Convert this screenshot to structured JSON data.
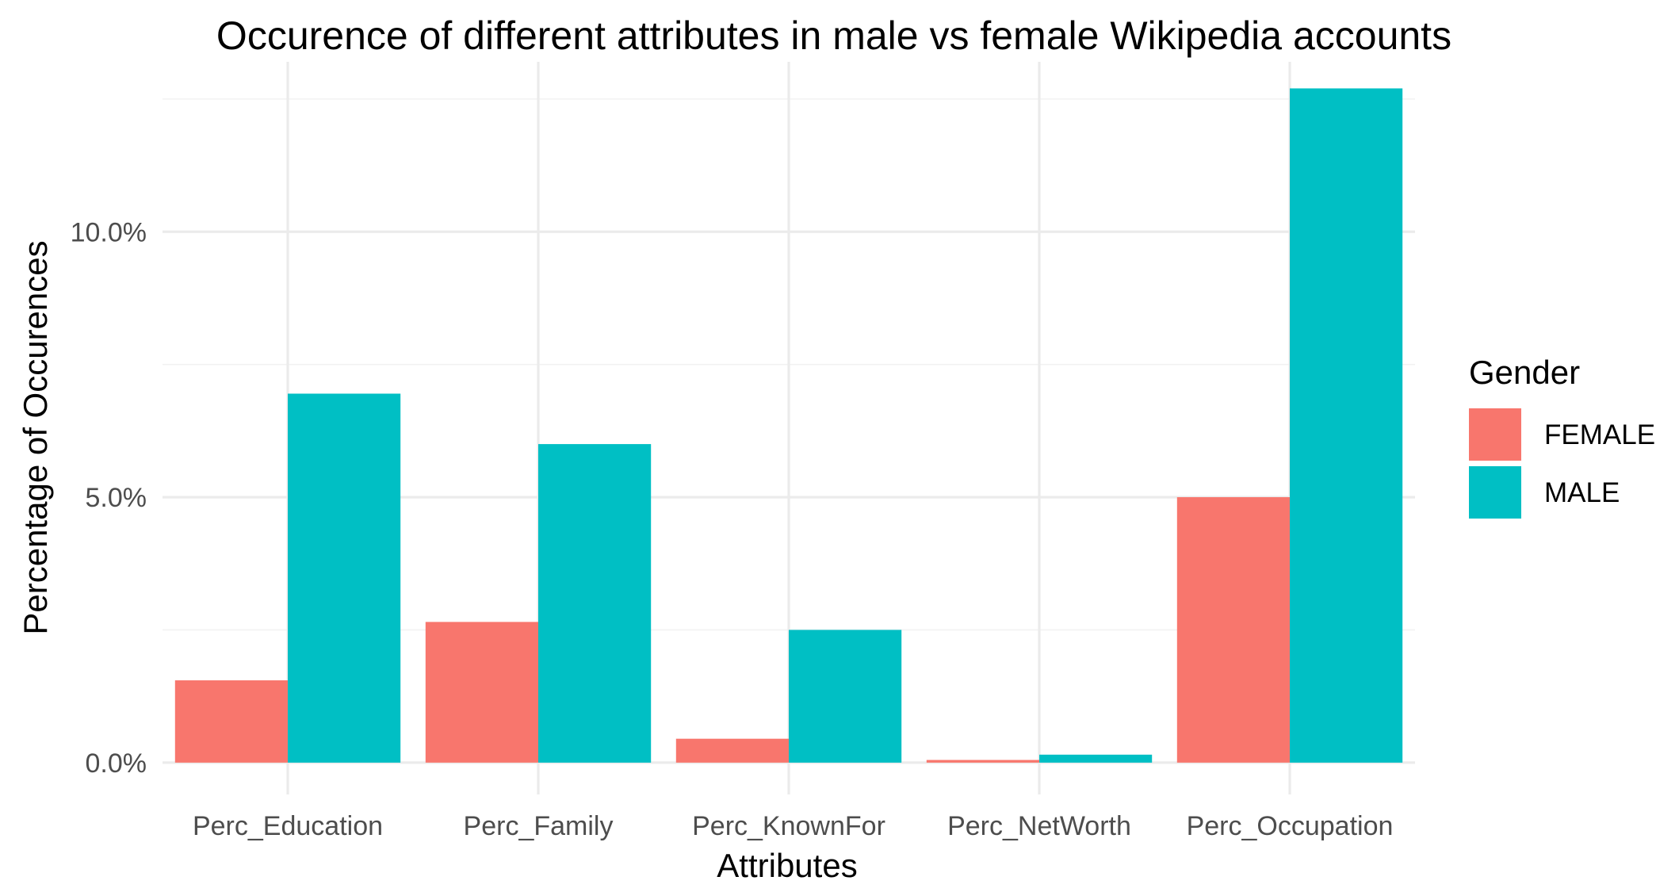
{
  "chart_data": {
    "type": "bar",
    "title": "Occurence of different attributes in male vs female Wikipedia accounts",
    "xlabel": "Attributes",
    "ylabel": "Percentage of Occurences",
    "categories": [
      "Perc_Education",
      "Perc_Family",
      "Perc_KnownFor",
      "Perc_NetWorth",
      "Perc_Occupation"
    ],
    "series": [
      {
        "name": "FEMALE",
        "color": "#F8766D",
        "values": [
          1.55,
          2.65,
          0.45,
          0.05,
          5.0
        ]
      },
      {
        "name": "MALE",
        "color": "#00BFC4",
        "values": [
          6.95,
          6.0,
          2.5,
          0.15,
          12.7
        ]
      }
    ],
    "ylim": [
      -0.6,
      13.2
    ],
    "yticks": [
      {
        "value": 0,
        "label": "0.0%"
      },
      {
        "value": 5,
        "label": "5.0%"
      },
      {
        "value": 10,
        "label": "10.0%"
      }
    ],
    "minor_yticks": [
      2.5,
      7.5,
      12.5
    ],
    "grid": true,
    "legend": {
      "title": "Gender",
      "position": "right"
    }
  }
}
